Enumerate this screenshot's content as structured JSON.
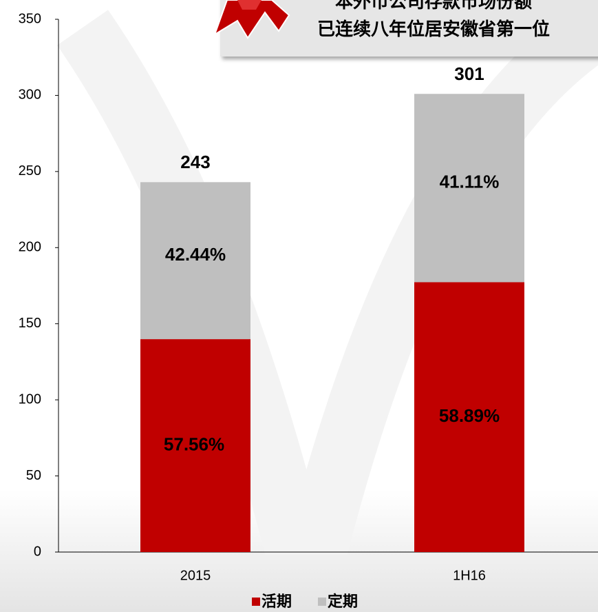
{
  "chart_data": {
    "type": "stacked_bar",
    "annotation": [
      "本外币公司存款市场份额",
      "已连续八年位居安徽省第一位"
    ],
    "categories": [
      "2015",
      "1H16"
    ],
    "series": [
      {
        "name": "活期",
        "color": "#c00000",
        "values": [
          139.87,
          177.26
        ],
        "share_labels": [
          "57.56%",
          "58.89%"
        ]
      },
      {
        "name": "定期",
        "color": "#bfbfbf",
        "values": [
          103.13,
          123.74
        ],
        "share_labels": [
          "42.44%",
          "41.11%"
        ]
      }
    ],
    "totals": [
      243,
      301
    ],
    "ylim": [
      0,
      350
    ],
    "yticks": [
      0,
      50,
      100,
      150,
      200,
      250,
      300,
      350
    ],
    "legend": "bottom"
  }
}
